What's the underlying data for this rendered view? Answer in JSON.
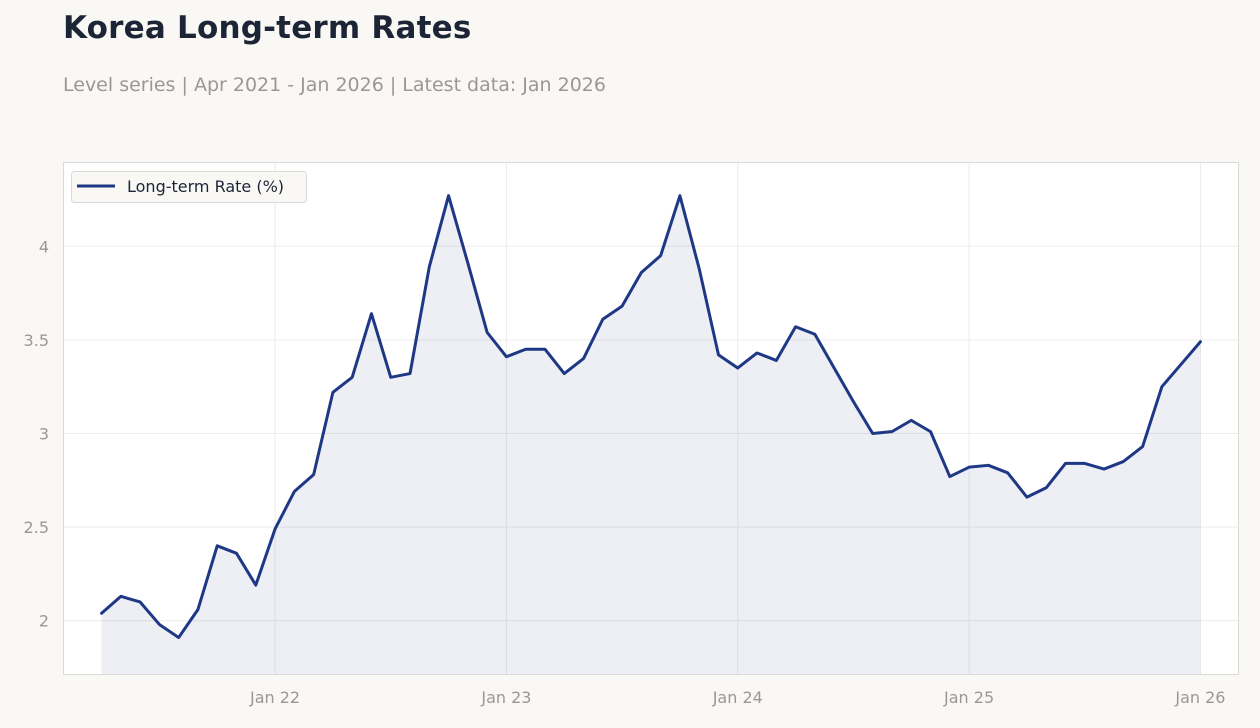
{
  "header": {
    "title": "Korea Long-term Rates",
    "subtitle": "Level series | Apr 2021 - Jan 2026 | Latest data: Jan 2026"
  },
  "colors": {
    "line": "#1f3885",
    "fill": "#1f3885",
    "background": "#f9f8f5",
    "plot_background": "#ffffff",
    "grid": "#ececec",
    "axis_text": "#9a9895",
    "frame": "#dcdad6"
  },
  "chart_data": {
    "type": "line",
    "title": "Korea Long-term Rates",
    "subtitle": "Level series | Apr 2021 - Jan 2026 | Latest data: Jan 2026",
    "xlabel": "",
    "ylabel": "",
    "x_start": "2021-04",
    "x_end": "2026-01",
    "xlim": [
      "2021-02",
      "2026-03"
    ],
    "ylim": [
      1.71,
      4.45
    ],
    "x_ticks": [
      {
        "date": "2022-01",
        "label": "Jan 22"
      },
      {
        "date": "2023-01",
        "label": "Jan 23"
      },
      {
        "date": "2024-01",
        "label": "Jan 24"
      },
      {
        "date": "2025-01",
        "label": "Jan 25"
      },
      {
        "date": "2026-01",
        "label": "Jan 26"
      }
    ],
    "y_ticks": [
      {
        "value": 2,
        "label": "2"
      },
      {
        "value": 2.5,
        "label": "2.5"
      },
      {
        "value": 3,
        "label": "3"
      },
      {
        "value": 3.5,
        "label": "3.5"
      },
      {
        "value": 4,
        "label": "4"
      }
    ],
    "grid": true,
    "area_fill": true,
    "legend": {
      "position": "top-left"
    },
    "series": [
      {
        "name": "Long-term Rate (%)",
        "x": [
          "2021-04",
          "2021-05",
          "2021-06",
          "2021-07",
          "2021-08",
          "2021-09",
          "2021-10",
          "2021-11",
          "2021-12",
          "2022-01",
          "2022-02",
          "2022-03",
          "2022-04",
          "2022-05",
          "2022-06",
          "2022-07",
          "2022-08",
          "2022-09",
          "2022-10",
          "2022-11",
          "2022-12",
          "2023-01",
          "2023-02",
          "2023-03",
          "2023-04",
          "2023-05",
          "2023-06",
          "2023-07",
          "2023-08",
          "2023-09",
          "2023-10",
          "2023-11",
          "2023-12",
          "2024-01",
          "2024-02",
          "2024-03",
          "2024-04",
          "2024-05",
          "2024-06",
          "2024-07",
          "2024-08",
          "2024-09",
          "2024-10",
          "2024-11",
          "2024-12",
          "2025-01",
          "2025-02",
          "2025-03",
          "2025-04",
          "2025-05",
          "2025-06",
          "2025-07",
          "2025-08",
          "2025-09",
          "2025-10",
          "2025-11",
          "2025-12",
          "2026-01"
        ],
        "y": [
          2.04,
          2.13,
          2.1,
          1.98,
          1.91,
          2.06,
          2.4,
          2.36,
          2.19,
          2.49,
          2.69,
          2.78,
          3.22,
          3.3,
          3.64,
          3.3,
          3.32,
          3.89,
          4.27,
          3.91,
          3.54,
          3.41,
          3.45,
          3.45,
          3.32,
          3.4,
          3.61,
          3.68,
          3.86,
          3.95,
          4.27,
          3.88,
          3.42,
          3.35,
          3.43,
          3.39,
          3.57,
          3.53,
          3.35,
          3.17,
          3.0,
          3.01,
          3.07,
          3.01,
          2.77,
          2.82,
          2.83,
          2.79,
          2.66,
          2.71,
          2.84,
          2.84,
          2.81,
          2.85,
          2.93,
          3.25,
          3.37,
          3.49
        ]
      }
    ]
  }
}
